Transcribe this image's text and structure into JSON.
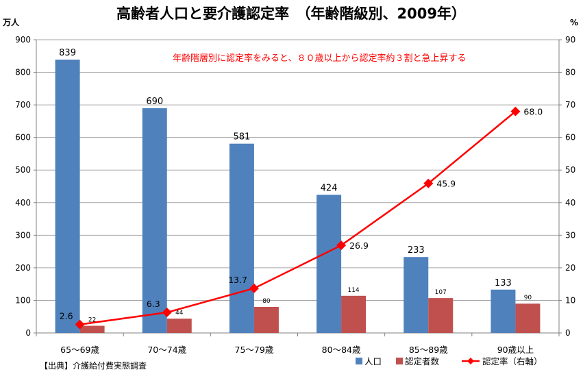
{
  "chart_data": {
    "type": "bar",
    "title": "高齢者人口と要介護認定率　（年齢階級別、2009年）",
    "left_axis_unit": "万人",
    "right_axis_unit": "%",
    "categories": [
      "65～69歳",
      "70～74歳",
      "75～79歳",
      "80～84歳",
      "85～89歳",
      "90歳以上"
    ],
    "left_axis": {
      "min": 0,
      "max": 900,
      "step": 100,
      "ticks": [
        "0",
        "100",
        "200",
        "300",
        "400",
        "500",
        "600",
        "700",
        "800",
        "900"
      ]
    },
    "right_axis": {
      "min": 0,
      "max": 90,
      "step": 10,
      "ticks": [
        "0",
        "10",
        "20",
        "30",
        "40",
        "50",
        "60",
        "70",
        "80",
        "90"
      ]
    },
    "series": [
      {
        "name": "人口",
        "kind": "bar",
        "axis": "left",
        "color": "#4f81bd",
        "values": [
          839,
          690,
          581,
          424,
          233,
          133
        ],
        "labels": [
          "839",
          "690",
          "581",
          "424",
          "233",
          "133"
        ]
      },
      {
        "name": "認定者数",
        "kind": "bar",
        "axis": "left",
        "color": "#c0504d",
        "values": [
          22,
          44,
          80,
          114,
          107,
          90
        ],
        "labels": [
          "22",
          "44",
          "80",
          "114",
          "107",
          "90"
        ]
      },
      {
        "name": "認定率（右軸）",
        "kind": "line",
        "axis": "right",
        "color": "#ff0000",
        "values": [
          2.6,
          6.3,
          13.7,
          26.9,
          45.9,
          68.0
        ],
        "labels": [
          "2.6",
          "6.3",
          "13.7",
          "26.9",
          "45.9",
          "68.0"
        ]
      }
    ],
    "annotation": "年齢階層別に認定率をみると、８０歳以上から認定率約３割と急上昇する",
    "source": "【出典】介護給付費実態調査"
  }
}
